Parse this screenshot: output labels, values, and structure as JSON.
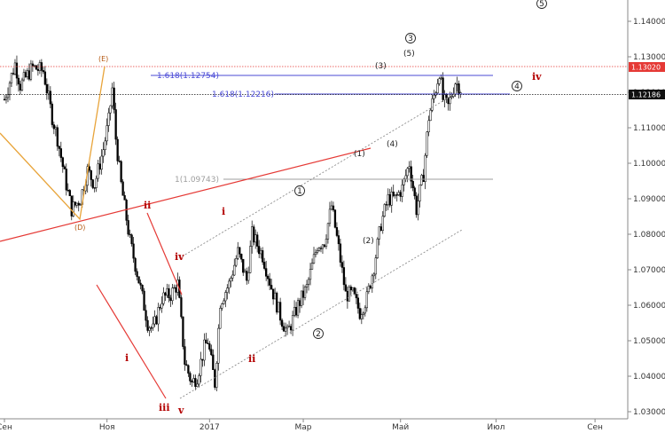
{
  "chart_data": {
    "type": "candlestick",
    "y_range": [
      1.028,
      1.146
    ],
    "y_ticks": [
      "1.14000",
      "1.13000",
      "1.12000",
      "1.11000",
      "1.10000",
      "1.09000",
      "1.08000",
      "1.07000",
      "1.06000",
      "1.05000",
      "1.04000",
      "1.03000"
    ],
    "x_labels": [
      {
        "t": 0,
        "label": "Сен"
      },
      {
        "t": 58,
        "label": "Ноя"
      },
      {
        "t": 116,
        "label": "2017"
      },
      {
        "t": 169,
        "label": "Мар"
      },
      {
        "t": 224,
        "label": "Май"
      },
      {
        "t": 278,
        "label": "Июл"
      },
      {
        "t": 334,
        "label": "Сен"
      }
    ],
    "price_path": [
      [
        0,
        1.118
      ],
      [
        6,
        1.128
      ],
      [
        9,
        1.122
      ],
      [
        16,
        1.127
      ],
      [
        22,
        1.126
      ],
      [
        27,
        1.113
      ],
      [
        30,
        1.107
      ],
      [
        35,
        1.094
      ],
      [
        38,
        1.087
      ],
      [
        43,
        1.09
      ],
      [
        47,
        1.098
      ],
      [
        51,
        1.094
      ],
      [
        56,
        1.104
      ],
      [
        59,
        1.112
      ],
      [
        61,
        1.121
      ],
      [
        63,
        1.107
      ],
      [
        66,
        1.094
      ],
      [
        71,
        1.078
      ],
      [
        76,
        1.067
      ],
      [
        81,
        1.055
      ],
      [
        84,
        1.053
      ],
      [
        89,
        1.062
      ],
      [
        94,
        1.063
      ],
      [
        98,
        1.066
      ],
      [
        102,
        1.044
      ],
      [
        106,
        1.038
      ],
      [
        109,
        1.04
      ],
      [
        113,
        1.048
      ],
      [
        115,
        1.05
      ],
      [
        119,
        1.038
      ],
      [
        122,
        1.061
      ],
      [
        127,
        1.066
      ],
      [
        132,
        1.075
      ],
      [
        137,
        1.067
      ],
      [
        140,
        1.08
      ],
      [
        146,
        1.074
      ],
      [
        151,
        1.065
      ],
      [
        156,
        1.057
      ],
      [
        160,
        1.052
      ],
      [
        166,
        1.06
      ],
      [
        171,
        1.065
      ],
      [
        177,
        1.077
      ],
      [
        181,
        1.078
      ],
      [
        185,
        1.088
      ],
      [
        189,
        1.076
      ],
      [
        193,
        1.063
      ],
      [
        197,
        1.063
      ],
      [
        201,
        1.058
      ],
      [
        205,
        1.062
      ],
      [
        209,
        1.071
      ],
      [
        213,
        1.083
      ],
      [
        217,
        1.09
      ],
      [
        221,
        1.09
      ],
      [
        225,
        1.093
      ],
      [
        229,
        1.1
      ],
      [
        233,
        1.087
      ],
      [
        237,
        1.097
      ],
      [
        240,
        1.113
      ],
      [
        244,
        1.121
      ],
      [
        246,
        1.126
      ],
      [
        248,
        1.118
      ],
      [
        251,
        1.116
      ],
      [
        255,
        1.123
      ],
      [
        258,
        1.121
      ]
    ],
    "current_price": 1.12186,
    "horizontal_levels": [
      {
        "label": "1.618(1.12754)",
        "value": 1.12754
      },
      {
        "label": "1.618(1.12216)",
        "value": 1.12216
      },
      {
        "label": "1(1.09743)",
        "value": 1.09743
      }
    ],
    "price_tags": [
      {
        "label": "1.13020",
        "value": 1.1302,
        "color": "#e53935"
      },
      {
        "label": "1.12186",
        "value": 1.12186,
        "color": "#111111"
      }
    ],
    "wave_labels": {
      "roman_red": [
        "ii",
        "i",
        "iv",
        "ii",
        "iii",
        "v",
        "i",
        "iv"
      ],
      "circled": [
        "1",
        "2",
        "3",
        "4",
        "5"
      ],
      "parenthesized": [
        "(1)",
        "(2)",
        "(3)",
        "(4)",
        "(5)"
      ],
      "triangle": [
        "(E)",
        "(D)"
      ]
    },
    "colors": {
      "up_candle": "#ffffff",
      "down_candle": "#000000",
      "fib_primary": "#4a4ad6",
      "fib_secondary": "#9e9e9e",
      "trendline_red": "#e53935",
      "triangle": "#e8a43a",
      "channel": "#8c8c8c",
      "resistance": "#e53935"
    }
  }
}
